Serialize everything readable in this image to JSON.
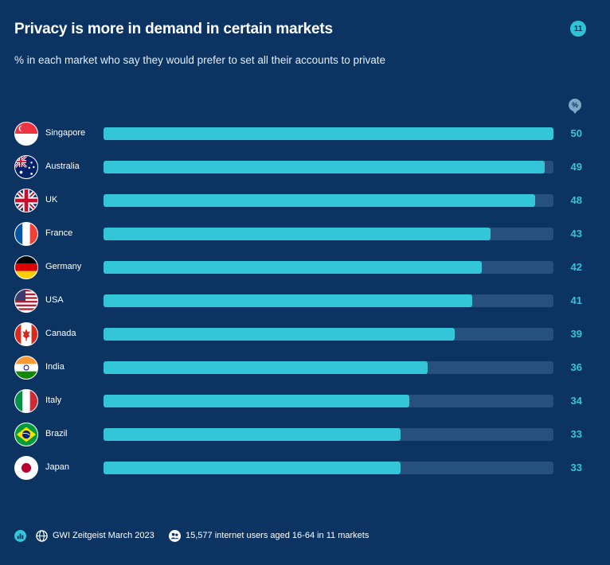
{
  "header": {
    "title": "Privacy is more in demand in certain markets",
    "subtitle": "% in each market who say they would prefer to set all their accounts to private",
    "page_badge": "11",
    "unit_marker": "%"
  },
  "chart_data": {
    "type": "bar",
    "orientation": "horizontal",
    "title": "Privacy is more in demand in certain markets",
    "subtitle": "% in each market who say they would prefer to set all their accounts to private",
    "categories": [
      "Singapore",
      "Australia",
      "UK",
      "France",
      "Germany",
      "USA",
      "Canada",
      "India",
      "Italy",
      "Brazil",
      "Japan"
    ],
    "values": [
      50,
      49,
      48,
      43,
      42,
      41,
      39,
      36,
      34,
      33,
      33
    ],
    "value_labels": [
      "50",
      "49",
      "48",
      "43",
      "42",
      "41",
      "39",
      "36",
      "34",
      "33",
      "33"
    ],
    "xlim": [
      0,
      50
    ],
    "colors": {
      "bar": "#33c5d8",
      "track": "#26507e",
      "background": "#0b3463"
    },
    "flags": [
      "singapore-flag-icon",
      "australia-flag-icon",
      "uk-flag-icon",
      "france-flag-icon",
      "germany-flag-icon",
      "usa-flag-icon",
      "canada-flag-icon",
      "india-flag-icon",
      "italy-flag-icon",
      "brazil-flag-icon",
      "japan-flag-icon"
    ]
  },
  "footer": {
    "source": "GWI Zeitgeist March 2023",
    "sample": "15,577 internet users aged 16-64 in 11 markets",
    "icons": [
      "bar-chart-icon",
      "globe-icon",
      "people-icon"
    ]
  }
}
